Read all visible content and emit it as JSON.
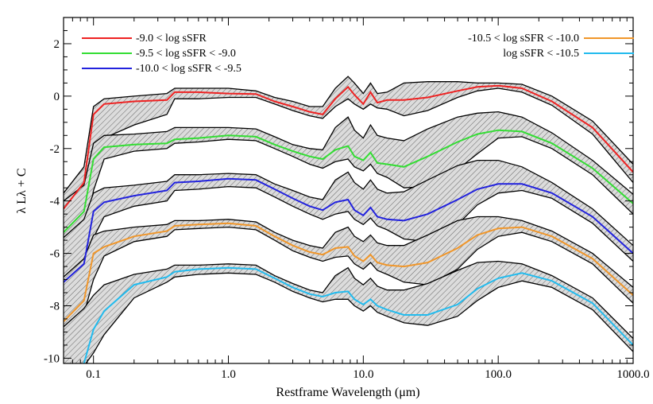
{
  "chart_data": {
    "type": "area",
    "title": "",
    "xlabel": "Restframe Wavelength (μm)",
    "ylabel": "λ Lλ + C",
    "xscale": "log",
    "xlim": [
      0.06,
      1000.0
    ],
    "ylim": [
      -10.2,
      3.0
    ],
    "x_ticks": [
      0.1,
      1.0,
      10.0,
      100.0,
      1000.0
    ],
    "x_tick_labels": [
      "0.1",
      "1.0",
      "10.0",
      "100.0",
      "1000.0"
    ],
    "y_ticks": [
      2,
      0,
      -2,
      -4,
      -6,
      -8,
      -10
    ],
    "y_tick_labels": [
      "2",
      "0",
      "-2",
      "-4",
      "-6",
      "-8",
      "-10"
    ],
    "grid": false,
    "legend_position": "top",
    "x": [
      0.06,
      0.085,
      0.1,
      0.12,
      0.2,
      0.35,
      0.4,
      0.6,
      1.0,
      1.6,
      2.2,
      3.0,
      4.0,
      5.0,
      6.2,
      7.7,
      8.6,
      10.0,
      11.3,
      12.7,
      15.0,
      20.0,
      30.0,
      50.0,
      70.0,
      100.0,
      150.0,
      250.0,
      500.0,
      1000.0
    ],
    "series": [
      {
        "name": "-9.0 < log sSFR",
        "color": "#ee2222",
        "values": [
          -4.3,
          -3.3,
          -0.7,
          -0.3,
          -0.2,
          -0.15,
          0.15,
          0.15,
          0.1,
          0.08,
          -0.2,
          -0.4,
          -0.6,
          -0.7,
          -0.1,
          0.35,
          0.05,
          -0.3,
          0.15,
          -0.25,
          -0.15,
          -0.15,
          -0.05,
          0.2,
          0.35,
          0.4,
          0.3,
          -0.2,
          -1.2,
          -2.9
        ],
        "band_lower": [
          -5.5,
          -4.8,
          -2.6,
          -1.6,
          -1.1,
          -0.7,
          -0.1,
          -0.1,
          -0.05,
          -0.05,
          -0.3,
          -0.55,
          -0.75,
          -0.85,
          -0.4,
          -0.1,
          -0.3,
          -0.5,
          -0.3,
          -0.45,
          -0.5,
          -0.75,
          -0.55,
          -0.05,
          0.2,
          0.3,
          0.15,
          -0.35,
          -1.45,
          -3.3
        ],
        "band_upper": [
          -3.7,
          -2.7,
          -0.4,
          -0.1,
          0.0,
          0.1,
          0.3,
          0.3,
          0.3,
          0.2,
          -0.05,
          -0.2,
          -0.4,
          -0.4,
          0.3,
          0.75,
          0.5,
          0.1,
          0.5,
          0.1,
          0.15,
          0.5,
          0.55,
          0.55,
          0.5,
          0.5,
          0.45,
          0.0,
          -0.95,
          -2.6
        ]
      },
      {
        "name": "-9.5 < log sSFR < -9.0",
        "color": "#33dd33",
        "values": [
          -5.2,
          -4.4,
          -2.4,
          -1.95,
          -1.85,
          -1.8,
          -1.65,
          -1.6,
          -1.5,
          -1.55,
          -1.85,
          -2.1,
          -2.3,
          -2.4,
          -2.05,
          -1.9,
          -2.3,
          -2.45,
          -2.15,
          -2.55,
          -2.6,
          -2.7,
          -2.3,
          -1.75,
          -1.45,
          -1.3,
          -1.35,
          -1.8,
          -2.75,
          -4.1
        ],
        "band_lower": [
          -6.2,
          -5.6,
          -3.6,
          -2.4,
          -2.1,
          -2.0,
          -1.8,
          -1.75,
          -1.65,
          -1.7,
          -2.0,
          -2.3,
          -2.6,
          -2.75,
          -2.5,
          -2.4,
          -2.7,
          -2.85,
          -2.6,
          -2.95,
          -3.1,
          -3.5,
          -3.45,
          -2.8,
          -2.2,
          -1.6,
          -1.55,
          -2.0,
          -3.0,
          -4.5
        ],
        "band_upper": [
          -4.0,
          -3.4,
          -1.8,
          -1.5,
          -1.45,
          -1.35,
          -1.2,
          -1.2,
          -1.2,
          -1.25,
          -1.55,
          -1.85,
          -2.0,
          -2.05,
          -1.2,
          -0.8,
          -1.3,
          -1.6,
          -1.1,
          -1.5,
          -1.6,
          -1.7,
          -1.25,
          -0.8,
          -0.65,
          -0.6,
          -0.8,
          -1.4,
          -2.45,
          -3.75
        ]
      },
      {
        "name": "-10.0 < log sSFR < -9.5",
        "color": "#2222dd",
        "values": [
          -7.1,
          -6.4,
          -4.4,
          -4.05,
          -3.8,
          -3.6,
          -3.3,
          -3.25,
          -3.15,
          -3.2,
          -3.55,
          -3.9,
          -4.2,
          -4.35,
          -4.05,
          -3.95,
          -4.35,
          -4.55,
          -4.25,
          -4.6,
          -4.7,
          -4.75,
          -4.5,
          -3.95,
          -3.55,
          -3.35,
          -3.35,
          -3.7,
          -4.6,
          -6.0
        ],
        "band_lower": [
          -7.7,
          -7.1,
          -5.4,
          -4.6,
          -4.2,
          -4.0,
          -3.6,
          -3.55,
          -3.45,
          -3.5,
          -3.85,
          -4.2,
          -4.5,
          -4.7,
          -4.5,
          -4.4,
          -4.7,
          -4.9,
          -4.65,
          -4.95,
          -5.1,
          -5.45,
          -5.55,
          -4.9,
          -4.15,
          -3.7,
          -3.6,
          -3.9,
          -4.85,
          -6.3
        ],
        "band_upper": [
          -5.4,
          -4.7,
          -3.7,
          -3.5,
          -3.4,
          -3.25,
          -3.0,
          -3.0,
          -2.95,
          -3.0,
          -3.35,
          -3.6,
          -3.85,
          -3.95,
          -3.2,
          -2.9,
          -3.3,
          -3.55,
          -3.2,
          -3.55,
          -3.7,
          -3.65,
          -3.2,
          -2.65,
          -2.45,
          -2.45,
          -2.7,
          -3.3,
          -4.3,
          -5.7
        ]
      },
      {
        "name": "-10.5 < log sSFR < -10.0",
        "color": "#f0962a",
        "values": [
          -8.6,
          -7.8,
          -6.0,
          -5.75,
          -5.35,
          -5.15,
          -4.95,
          -4.9,
          -4.85,
          -4.95,
          -5.35,
          -5.7,
          -5.95,
          -6.05,
          -5.8,
          -5.75,
          -6.1,
          -6.3,
          -6.05,
          -6.35,
          -6.45,
          -6.5,
          -6.35,
          -5.8,
          -5.3,
          -5.05,
          -5.0,
          -5.35,
          -6.2,
          -7.6
        ],
        "band_lower": [
          -8.9,
          -8.3,
          -7.0,
          -6.1,
          -5.55,
          -5.35,
          -5.1,
          -5.05,
          -5.0,
          -5.1,
          -5.5,
          -5.9,
          -6.15,
          -6.3,
          -6.15,
          -6.1,
          -6.4,
          -6.6,
          -6.35,
          -6.65,
          -6.8,
          -7.1,
          -7.2,
          -6.6,
          -5.85,
          -5.35,
          -5.2,
          -5.55,
          -6.4,
          -7.9
        ],
        "band_upper": [
          -6.9,
          -6.2,
          -5.3,
          -5.15,
          -5.0,
          -4.9,
          -4.75,
          -4.75,
          -4.7,
          -4.8,
          -5.2,
          -5.5,
          -5.7,
          -5.8,
          -5.2,
          -5.0,
          -5.35,
          -5.55,
          -5.3,
          -5.6,
          -5.7,
          -5.7,
          -5.3,
          -4.75,
          -4.6,
          -4.6,
          -4.75,
          -5.15,
          -6.0,
          -7.3
        ]
      },
      {
        "name": "log sSFR < -10.5",
        "color": "#22bbee",
        "values": [
          -10.4,
          -10.2,
          -8.9,
          -8.2,
          -7.2,
          -6.9,
          -6.7,
          -6.6,
          -6.55,
          -6.6,
          -6.95,
          -7.3,
          -7.55,
          -7.65,
          -7.5,
          -7.45,
          -7.75,
          -7.95,
          -7.75,
          -8.0,
          -8.15,
          -8.35,
          -8.35,
          -7.95,
          -7.35,
          -6.95,
          -6.75,
          -7.05,
          -7.9,
          -9.5
        ],
        "band_lower": [
          -10.4,
          -10.3,
          -9.8,
          -9.1,
          -7.7,
          -7.1,
          -6.9,
          -6.8,
          -6.75,
          -6.8,
          -7.1,
          -7.45,
          -7.7,
          -7.85,
          -7.75,
          -7.75,
          -8.0,
          -8.2,
          -8.0,
          -8.25,
          -8.4,
          -8.65,
          -8.75,
          -8.4,
          -7.8,
          -7.3,
          -7.05,
          -7.3,
          -8.15,
          -9.75
        ],
        "band_upper": [
          -8.8,
          -8.1,
          -7.6,
          -7.2,
          -6.8,
          -6.6,
          -6.45,
          -6.45,
          -6.4,
          -6.45,
          -6.85,
          -7.15,
          -7.4,
          -7.5,
          -6.85,
          -6.55,
          -6.95,
          -7.2,
          -6.95,
          -7.25,
          -7.4,
          -7.4,
          -7.15,
          -6.65,
          -6.35,
          -6.3,
          -6.4,
          -6.85,
          -7.7,
          -9.25
        ]
      }
    ]
  }
}
